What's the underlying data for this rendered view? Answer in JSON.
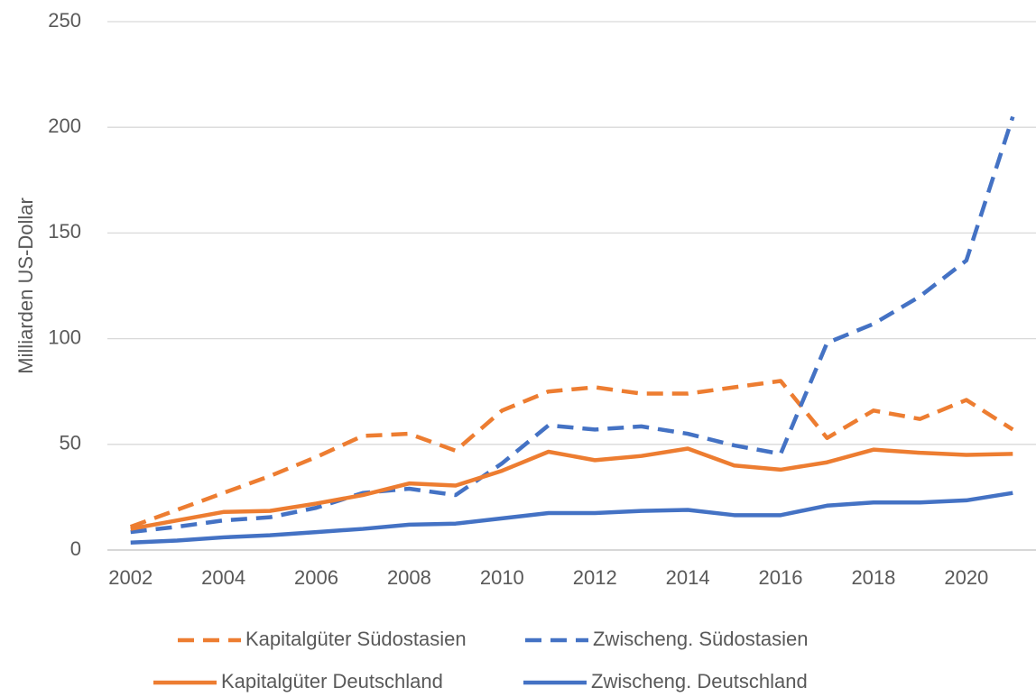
{
  "chart_data": {
    "type": "line",
    "y_label": "Milliarden US-Dollar",
    "x": [
      2002,
      2003,
      2004,
      2005,
      2006,
      2007,
      2008,
      2009,
      2010,
      2011,
      2012,
      2013,
      2014,
      2015,
      2016,
      2017,
      2018,
      2019,
      2020,
      2021
    ],
    "xlim": [
      2001.5,
      2021.5
    ],
    "xticks": [
      2002,
      2004,
      2006,
      2008,
      2010,
      2012,
      2014,
      2016,
      2018,
      2020
    ],
    "ylim": [
      0,
      250
    ],
    "yticks": [
      0,
      50,
      100,
      150,
      200,
      250
    ],
    "grid": true,
    "legend": "bottom",
    "series": [
      {
        "name": "Kapitalgüter Südostasien",
        "color": "#ed7d31",
        "style": "dashed",
        "values": [
          11,
          19,
          27,
          35,
          44,
          54,
          55,
          47,
          66,
          75,
          77,
          74,
          74,
          77,
          80,
          53,
          66,
          62,
          71,
          57
        ]
      },
      {
        "name": "Zwischeng. Südostasien",
        "color": "#4472c4",
        "style": "dashed",
        "values": [
          8.5,
          11,
          14,
          15.5,
          20,
          27,
          29,
          26,
          41,
          59,
          57,
          58.5,
          55,
          49.5,
          45.5,
          98,
          107,
          120,
          137,
          205
        ]
      },
      {
        "name": "Kapitalgüter Deutschland",
        "color": "#ed7d31",
        "style": "solid",
        "values": [
          10,
          14,
          18,
          18.5,
          22,
          26,
          31.5,
          30.5,
          37.5,
          46.5,
          42.5,
          44.5,
          48,
          40,
          38,
          41.5,
          47.5,
          46,
          45,
          45.5
        ]
      },
      {
        "name": "Zwischeng. Deutschland",
        "color": "#4472c4",
        "style": "solid",
        "values": [
          3.5,
          4.5,
          6,
          7,
          8.5,
          10,
          12,
          12.5,
          15,
          17.5,
          17.5,
          18.5,
          19,
          16.5,
          16.5,
          21,
          22.5,
          22.5,
          23.5,
          27
        ]
      }
    ]
  }
}
